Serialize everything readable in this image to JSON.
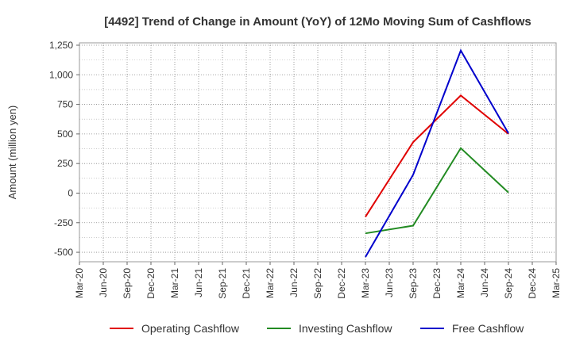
{
  "chart_data": {
    "type": "line",
    "title": "[4492]  Trend of Change in Amount (YoY) of 12Mo Moving Sum of Cashflows",
    "xlabel": "",
    "ylabel": "Amount (million yen)",
    "categories": [
      "Mar-20",
      "Jun-20",
      "Sep-20",
      "Dec-20",
      "Mar-21",
      "Jun-21",
      "Sep-21",
      "Dec-21",
      "Mar-22",
      "Jun-22",
      "Sep-22",
      "Dec-22",
      "Mar-23",
      "Jun-23",
      "Sep-23",
      "Dec-23",
      "Mar-24",
      "Jun-24",
      "Sep-24",
      "Dec-24",
      "Mar-25"
    ],
    "yticks": [
      -500,
      -250,
      0,
      250,
      500,
      750,
      1000,
      1250
    ],
    "ytick_labels": [
      "-500",
      "-250",
      "0",
      "250",
      "500",
      "750",
      "1,000",
      "1,250"
    ],
    "ylim": [
      -580,
      1270
    ],
    "grid": true,
    "legend_position": "bottom",
    "series": [
      {
        "name": "Operating Cashflow",
        "color": "#e00000",
        "points": [
          [
            "Mar-23",
            -200
          ],
          [
            "Sep-23",
            430
          ],
          [
            "Mar-24",
            825
          ],
          [
            "Sep-24",
            500
          ]
        ]
      },
      {
        "name": "Investing Cashflow",
        "color": "#228b22",
        "points": [
          [
            "Mar-23",
            -340
          ],
          [
            "Sep-23",
            -275
          ],
          [
            "Mar-24",
            380
          ],
          [
            "Sep-24",
            5
          ]
        ]
      },
      {
        "name": "Free Cashflow",
        "color": "#0000cc",
        "points": [
          [
            "Mar-23",
            -540
          ],
          [
            "Sep-23",
            155
          ],
          [
            "Mar-24",
            1205
          ],
          [
            "Sep-24",
            505
          ]
        ]
      }
    ]
  }
}
